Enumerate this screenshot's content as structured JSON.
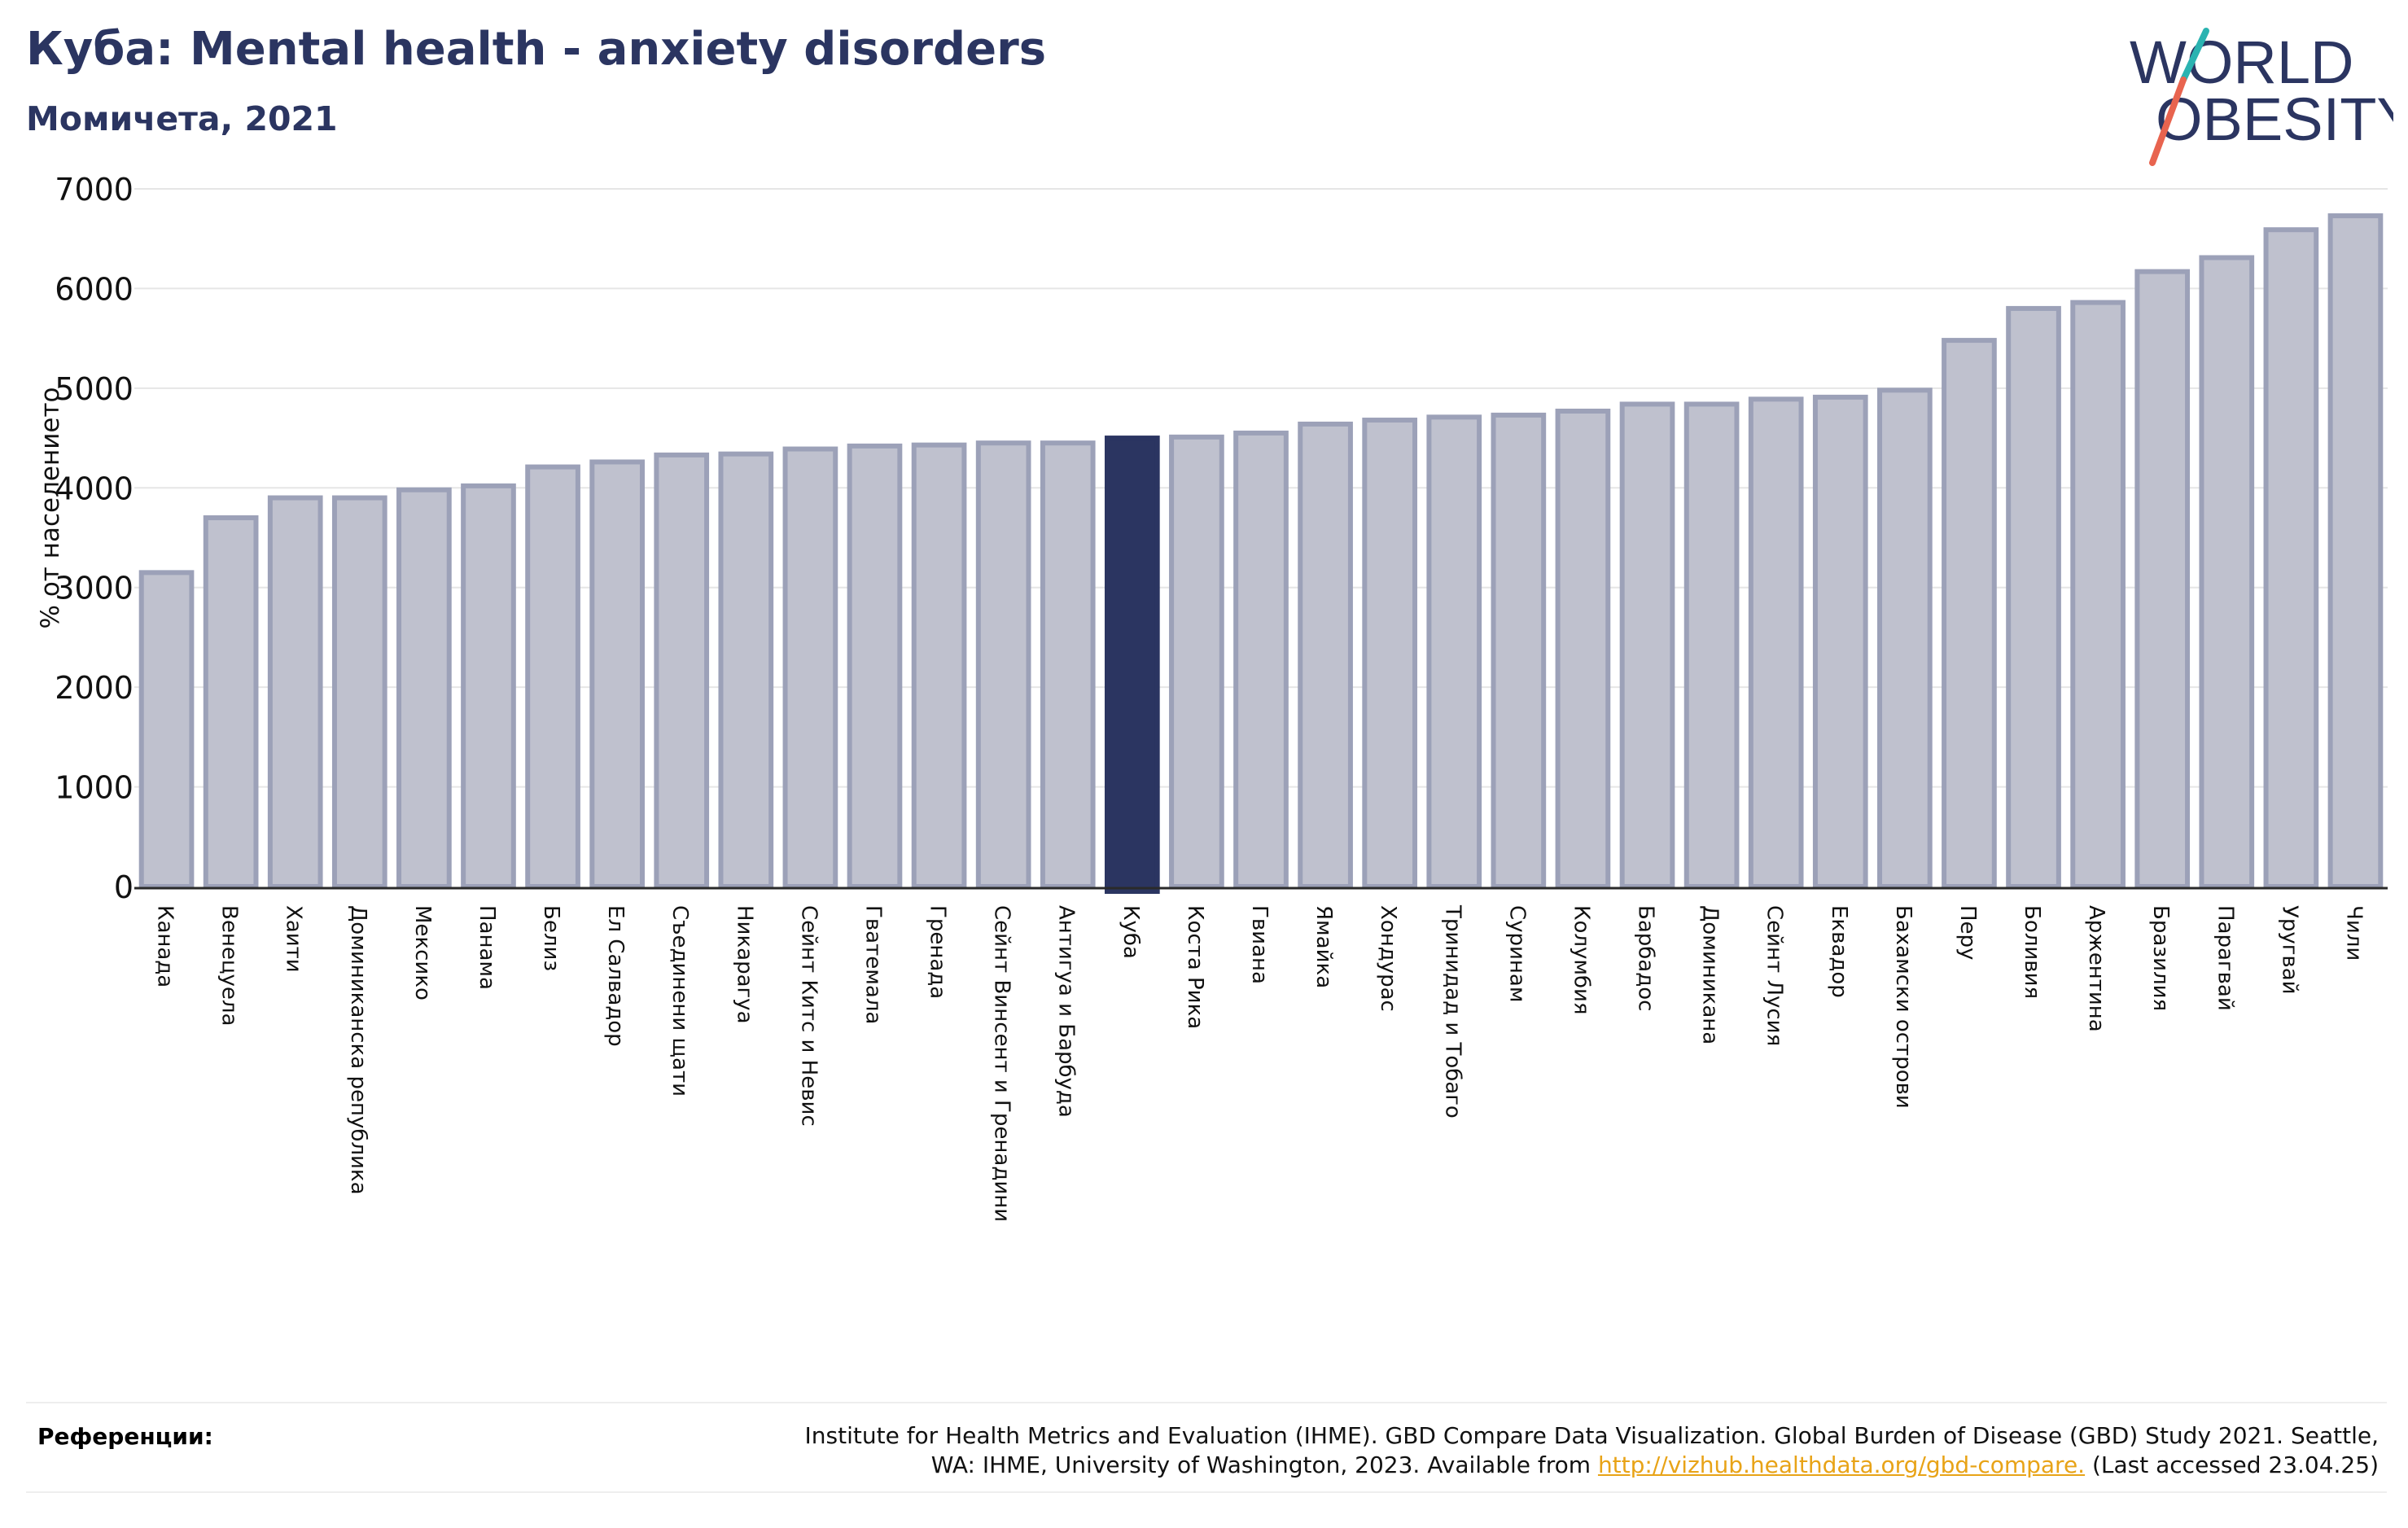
{
  "header": {
    "title": "Куба: Mental health - anxiety disorders",
    "subtitle": "Момичета, 2021"
  },
  "logo": {
    "line1": "WORLD",
    "line2": "OBESITY",
    "text_color": "#2b3561",
    "slash_top_color": "#2bb3b1",
    "slash_bottom_color": "#e8644f"
  },
  "chart_data": {
    "type": "bar",
    "title": "Куба: Mental health - anxiety disorders",
    "subtitle": "Момичета, 2021",
    "ylabel": "% от населението",
    "xlabel": "",
    "ylim": [
      0,
      7000
    ],
    "yticks": [
      0,
      1000,
      2000,
      3000,
      4000,
      5000,
      6000,
      7000
    ],
    "grid": true,
    "highlight": "Куба",
    "highlight_color": "#2b3561",
    "bar_color": "#bfc1ce",
    "bar_edge_color": "#9ca1b8",
    "categories": [
      "Канада",
      "Венецуела",
      "Хаити",
      "Доминиканска република",
      "Мексико",
      "Панама",
      "Белиз",
      "Ел Салвадор",
      "Съединени щати",
      "Никарагуа",
      "Сейнт Китс и Невис",
      "Гватемала",
      "Гренада",
      "Сейнт Винсент и Гренадини",
      "Антигуа и Барбуда",
      "Куба",
      "Коста Рика",
      "Гвиана",
      "Ямайка",
      "Хондурас",
      "Тринидад и Тобаго",
      "Суринам",
      "Колумбия",
      "Барбадос",
      "Доминикана",
      "Сейнт Лусия",
      "Еквадор",
      "Бахамски острови",
      "Перу",
      "Боливия",
      "Аржентина",
      "Бразилия",
      "Парагвай",
      "Уругвай",
      "Чили"
    ],
    "values": [
      3150,
      3700,
      3900,
      3900,
      3980,
      4020,
      4210,
      4260,
      4330,
      4340,
      4390,
      4420,
      4430,
      4450,
      4450,
      4500,
      4510,
      4550,
      4640,
      4680,
      4710,
      4730,
      4770,
      4840,
      4840,
      4890,
      4910,
      4980,
      5480,
      5800,
      5860,
      6170,
      6310,
      6590,
      6730
    ]
  },
  "references": {
    "label": "Референции:",
    "text_line1": "Institute for Health Metrics and Evaluation (IHME). GBD Compare Data Visualization. Global Burden of Disease (GBD) Study 2021. Seattle,",
    "text_line2_prefix": "WA: IHME, University of Washington, 2023. Available from ",
    "link": "http://vizhub.healthdata.org/gbd-compare.",
    "text_line2_suffix": " (Last accessed 23.04.25)"
  }
}
